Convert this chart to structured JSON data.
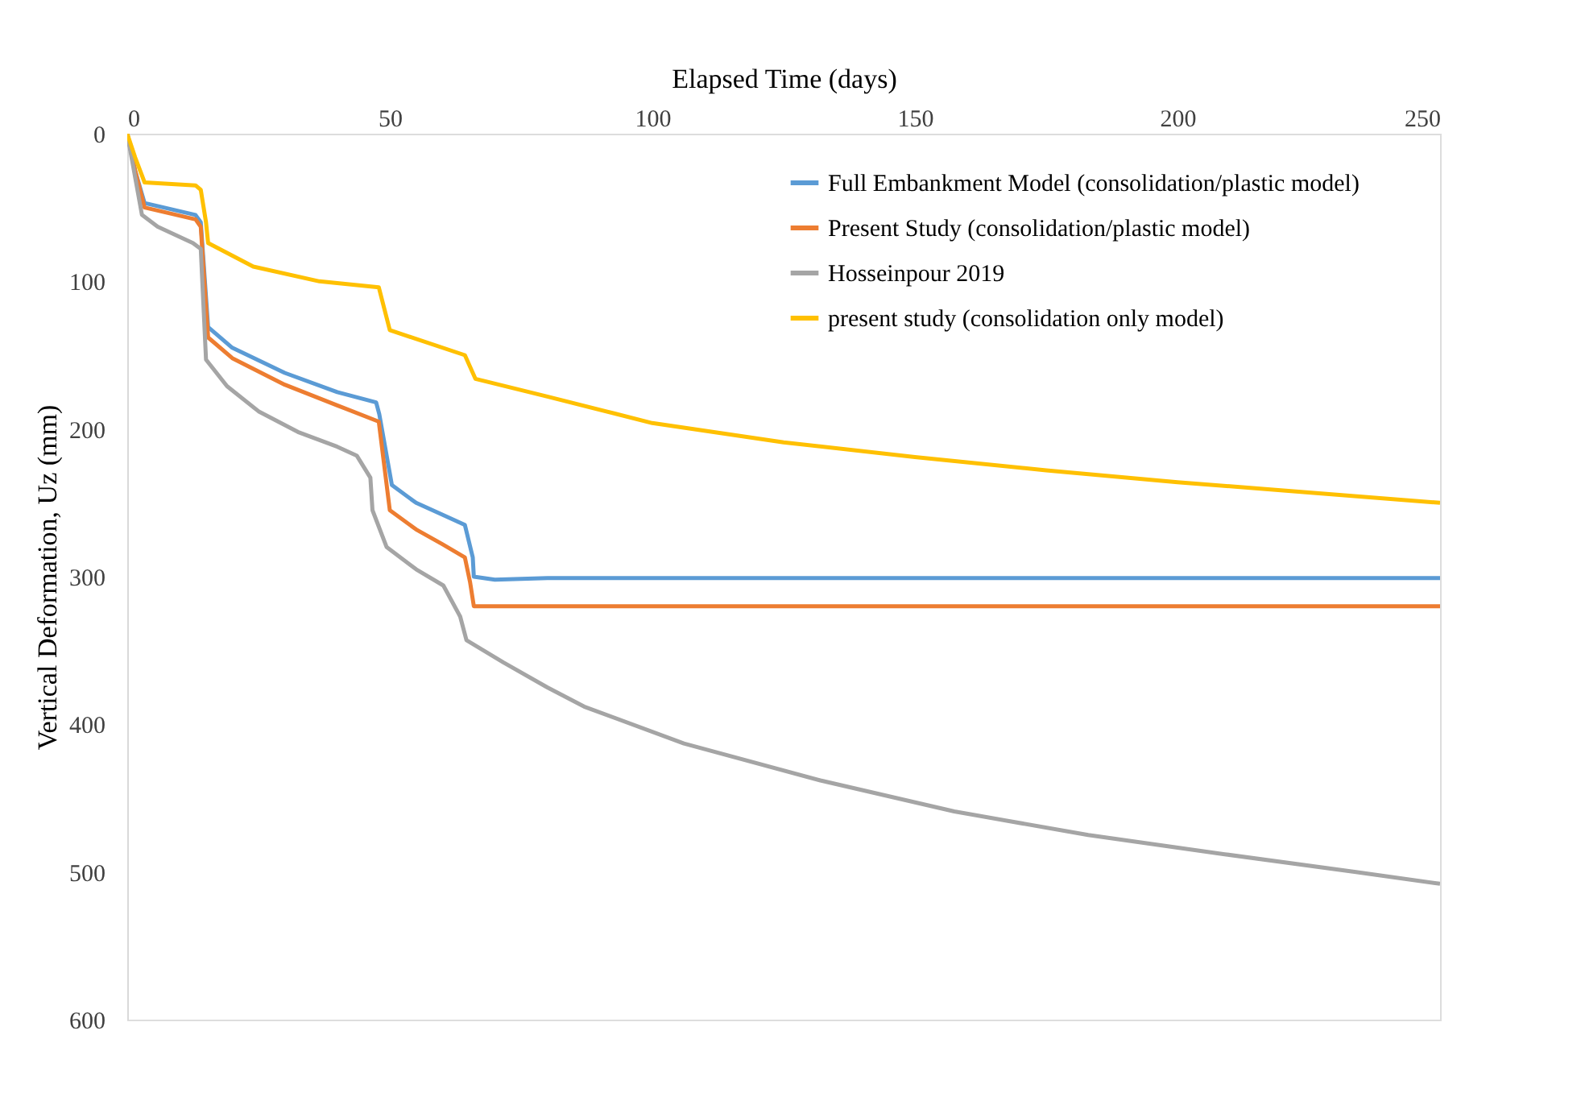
{
  "chart_data": {
    "type": "line",
    "xlabel": "Elapsed Time (days)",
    "ylabel": "Vertical Deformation, Uz (mm)",
    "xlim": [
      0,
      250
    ],
    "xticks": [
      0,
      50,
      100,
      150,
      200,
      250
    ],
    "ylim": [
      600,
      0
    ],
    "yticks": [
      0,
      100,
      200,
      300,
      400,
      500,
      600
    ],
    "grid": false,
    "legend": "top right",
    "marker": "none",
    "line_style": "solid",
    "series": [
      {
        "name": "Full Embankment Model (consolidation/plastic model)",
        "color": "#5b9bd5",
        "x": [
          0,
          1.5,
          3.3,
          13,
          14,
          15.4,
          20,
          30,
          40,
          47.4,
          48,
          50.4,
          55,
          60,
          64.3,
          65.8,
          66,
          70,
          80,
          100,
          150,
          200,
          250
        ],
        "values": [
          0,
          25,
          47,
          55,
          60,
          131,
          145,
          162,
          175,
          182,
          190,
          238,
          250,
          258,
          265,
          287,
          300,
          302,
          301,
          301,
          301,
          301,
          301
        ]
      },
      {
        "name": "Present Study (consolidation/plastic model)",
        "color": "#ed7d31",
        "x": [
          0,
          1.5,
          3.3,
          13,
          14,
          15.4,
          20,
          30,
          40,
          47.9,
          50,
          55,
          60,
          64.3,
          65.3,
          66,
          80,
          100,
          150,
          200,
          250
        ],
        "values": [
          0,
          25,
          50,
          58,
          63,
          138,
          152,
          170,
          184,
          195,
          255,
          268,
          278,
          287,
          304,
          320,
          320,
          320,
          320,
          320,
          320
        ]
      },
      {
        "name": "Hosseinpour 2019",
        "color": "#a5a5a5",
        "x": [
          0,
          2.8,
          5.8,
          12.5,
          14,
          15,
          19,
          25,
          32.5,
          40,
          43.7,
          46.3,
          46.7,
          49.4,
          55,
          60.2,
          63.4,
          64.6,
          71.6,
          80,
          87,
          106,
          132,
          157.5,
          183,
          209,
          234,
          250
        ],
        "values": [
          0,
          55,
          63,
          74,
          78,
          153,
          171,
          188,
          202,
          212,
          218,
          233,
          255,
          280,
          295,
          306,
          327,
          343,
          358,
          375,
          388,
          413,
          438,
          459,
          475,
          488,
          500,
          508
        ]
      },
      {
        "name": "present study (consolidation only model)",
        "color": "#ffc000",
        "x": [
          0,
          1.5,
          3.3,
          13,
          14,
          15,
          15.4,
          24,
          36.6,
          47.9,
          50,
          64.3,
          66.3,
          80,
          100,
          125,
          150,
          175,
          200,
          225,
          250
        ],
        "values": [
          0,
          16,
          33,
          35,
          38,
          60,
          74,
          90,
          100,
          104,
          133,
          150,
          166,
          178,
          196,
          209,
          219,
          228,
          236,
          243,
          250
        ]
      }
    ]
  }
}
